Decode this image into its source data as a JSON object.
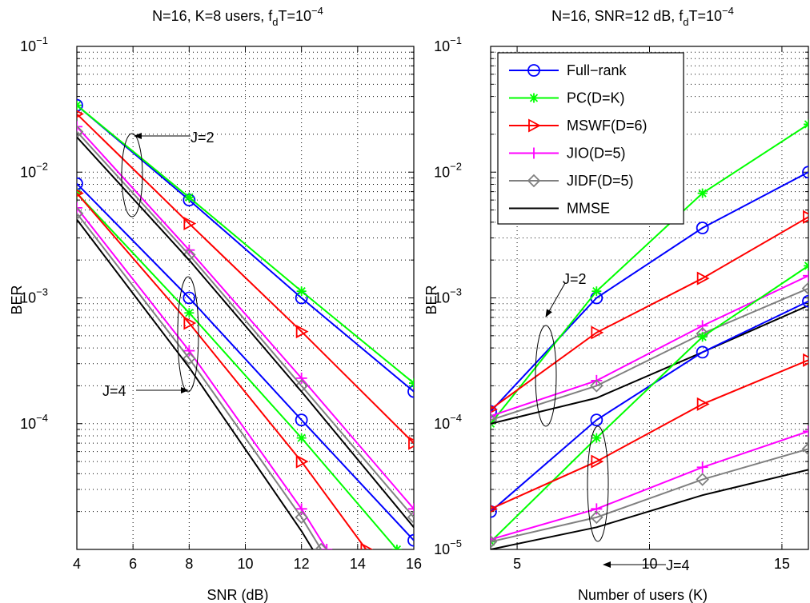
{
  "chart_data": [
    {
      "type": "line",
      "title_main": "N=16, K=8 users, f",
      "title_sub": "d",
      "title_rest": "T=10",
      "title_exp": "−4",
      "xlabel": "SNR (dB)",
      "ylabel": "BER",
      "xlim": [
        4,
        16
      ],
      "ylim_log10": [
        -5,
        -1
      ],
      "yscale": "log",
      "grid": true,
      "xticks": [
        "4",
        "6",
        "8",
        "10",
        "12",
        "14",
        "16"
      ],
      "yticks": [
        {
          "base": "10",
          "exp": "−1"
        },
        {
          "base": "10",
          "exp": "−2"
        },
        {
          "base": "10",
          "exp": "−3"
        },
        {
          "base": "10",
          "exp": "−4"
        }
      ],
      "series": [
        {
          "name": "Full−rank",
          "color": "#0000ff",
          "marker": "circle",
          "group": "J=2",
          "x": [
            4,
            8,
            12,
            16
          ],
          "y": [
            0.034,
            0.006,
            0.001,
            0.00018
          ]
        },
        {
          "name": "PC(D=K)",
          "color": "#00ff00",
          "marker": "star",
          "group": "J=2",
          "x": [
            4,
            8,
            12,
            16
          ],
          "y": [
            0.034,
            0.0063,
            0.00113,
            0.00021
          ]
        },
        {
          "name": "MSWF(D=6)",
          "color": "#ff0000",
          "marker": "triangle-right",
          "group": "J=2",
          "x": [
            4,
            8,
            12,
            16
          ],
          "y": [
            0.029,
            0.0039,
            0.00054,
            7e-05
          ]
        },
        {
          "name": "JIO(D=5)",
          "color": "#ff00ff",
          "marker": "plus",
          "group": "J=2",
          "x": [
            4,
            8,
            12,
            16
          ],
          "y": [
            0.023,
            0.0024,
            0.00023,
            2.1e-05
          ]
        },
        {
          "name": "JIDF(D=5)",
          "color": "#808080",
          "marker": "diamond",
          "group": "J=2",
          "x": [
            4,
            8,
            12,
            16
          ],
          "y": [
            0.021,
            0.0022,
            0.0002,
            1.8e-05
          ]
        },
        {
          "name": "MMSE",
          "color": "#000000",
          "marker": "none",
          "group": "J=2",
          "x": [
            4,
            8,
            12,
            16
          ],
          "y": [
            0.019,
            0.002,
            0.00018,
            1.5e-05
          ]
        },
        {
          "name": "Full−rank",
          "color": "#0000ff",
          "marker": "circle",
          "group": "J=4",
          "x": [
            4,
            8,
            12,
            16
          ],
          "y": [
            0.0081,
            0.001,
            0.000107,
            1.18e-05
          ]
        },
        {
          "name": "PC(D=K)",
          "color": "#00ff00",
          "marker": "star",
          "group": "J=4",
          "x": [
            4,
            8,
            12,
            15.4
          ],
          "y": [
            0.0068,
            0.00076,
            7.7e-05,
            1e-05
          ]
        },
        {
          "name": "MSWF(D=6)",
          "color": "#ff0000",
          "marker": "triangle-right",
          "group": "J=4",
          "x": [
            4,
            8,
            12,
            14.3
          ],
          "y": [
            0.0068,
            0.00063,
            5e-05,
            1e-05
          ]
        },
        {
          "name": "JIO(D=5)",
          "color": "#ff00ff",
          "marker": "plus",
          "group": "J=4",
          "x": [
            4,
            8,
            12,
            12.9
          ],
          "y": [
            0.0052,
            0.00038,
            2.1e-05,
            1e-05
          ]
        },
        {
          "name": "JIDF(D=5)",
          "color": "#808080",
          "marker": "diamond",
          "group": "J=4",
          "x": [
            4,
            8,
            12,
            12.7
          ],
          "y": [
            0.0047,
            0.00033,
            1.8e-05,
            1e-05
          ]
        },
        {
          "name": "MMSE",
          "color": "#000000",
          "marker": "none",
          "group": "J=4",
          "x": [
            4,
            8,
            12,
            12.4
          ],
          "y": [
            0.0042,
            0.00028,
            1.4e-05,
            1e-05
          ]
        }
      ],
      "annotations": [
        "J=2",
        "J=4"
      ]
    },
    {
      "type": "line",
      "title_main": "N=16, SNR=12 dB, f",
      "title_sub": "d",
      "title_rest": "T=10",
      "title_exp": "−4",
      "xlabel": "Number of users (K)",
      "ylabel": "BER",
      "xlim": [
        4,
        16
      ],
      "ylim_log10": [
        -5,
        -1
      ],
      "yscale": "log",
      "grid": true,
      "legend_position": "top-left",
      "xticks": [
        "5",
        "10",
        "15"
      ],
      "yticks": [
        {
          "base": "10",
          "exp": "−1"
        },
        {
          "base": "10",
          "exp": "−2"
        },
        {
          "base": "10",
          "exp": "−3"
        },
        {
          "base": "10",
          "exp": "−4"
        },
        {
          "base": "10",
          "exp": "−5"
        }
      ],
      "legend": [
        "Full−rank",
        "PC(D=K)",
        "MSWF(D=6)",
        "JIO(D=5)",
        "JIDF(D=5)",
        "MMSE"
      ],
      "series": [
        {
          "name": "Full−rank",
          "color": "#0000ff",
          "marker": "circle",
          "group": "J=2",
          "x": [
            4,
            8,
            12,
            16
          ],
          "y": [
            0.000125,
            0.001,
            0.0036,
            0.01
          ]
        },
        {
          "name": "PC(D=K)",
          "color": "#00ff00",
          "marker": "star",
          "group": "J=2",
          "x": [
            4,
            8,
            12,
            16
          ],
          "y": [
            0.0001,
            0.00113,
            0.0068,
            0.024
          ]
        },
        {
          "name": "MSWF(D=6)",
          "color": "#ff0000",
          "marker": "triangle-right",
          "group": "J=2",
          "x": [
            4,
            8,
            12,
            16
          ],
          "y": [
            0.00013,
            0.00053,
            0.00143,
            0.0044
          ]
        },
        {
          "name": "JIO(D=5)",
          "color": "#ff00ff",
          "marker": "plus",
          "group": "J=2",
          "x": [
            4,
            8,
            12,
            16
          ],
          "y": [
            0.000115,
            0.00022,
            0.0006,
            0.0015
          ]
        },
        {
          "name": "JIDF(D=5)",
          "color": "#808080",
          "marker": "diamond",
          "group": "J=2",
          "x": [
            4,
            8,
            12,
            16
          ],
          "y": [
            0.000107,
            0.0002,
            0.00052,
            0.00119
          ]
        },
        {
          "name": "MMSE",
          "color": "#000000",
          "marker": "none",
          "group": "J=2",
          "x": [
            4,
            8,
            12,
            16
          ],
          "y": [
            0.0001,
            0.00016,
            0.00037,
            0.00087
          ]
        },
        {
          "name": "Full−rank",
          "color": "#0000ff",
          "marker": "circle",
          "group": "J=4",
          "x": [
            4,
            8,
            12,
            16
          ],
          "y": [
            2e-05,
            0.000107,
            0.00037,
            0.00094
          ]
        },
        {
          "name": "PC(D=K)",
          "color": "#00ff00",
          "marker": "star",
          "group": "J=4",
          "x": [
            4,
            8,
            12,
            16
          ],
          "y": [
            1.15e-05,
            7.7e-05,
            0.00049,
            0.0018
          ]
        },
        {
          "name": "MSWF(D=6)",
          "color": "#ff0000",
          "marker": "triangle-right",
          "group": "J=4",
          "x": [
            4,
            8,
            12,
            16
          ],
          "y": [
            2.1e-05,
            5e-05,
            0.000143,
            0.00032
          ]
        },
        {
          "name": "JIO(D=5)",
          "color": "#ff00ff",
          "marker": "plus",
          "group": "J=4",
          "x": [
            4,
            8,
            12,
            16
          ],
          "y": [
            1.2e-05,
            2.1e-05,
            4.5e-05,
            8.7e-05
          ]
        },
        {
          "name": "JIDF(D=5)",
          "color": "#808080",
          "marker": "diamond",
          "group": "J=4",
          "x": [
            4,
            8,
            12,
            16
          ],
          "y": [
            1.15e-05,
            1.8e-05,
            3.6e-05,
            6.3e-05
          ]
        },
        {
          "name": "MMSE",
          "color": "#000000",
          "marker": "none",
          "group": "J=4",
          "x": [
            4,
            8,
            12,
            16
          ],
          "y": [
            1e-05,
            1.5e-05,
            2.7e-05,
            4.3e-05
          ]
        }
      ],
      "annotations": [
        "J=2",
        "J=4"
      ]
    }
  ]
}
